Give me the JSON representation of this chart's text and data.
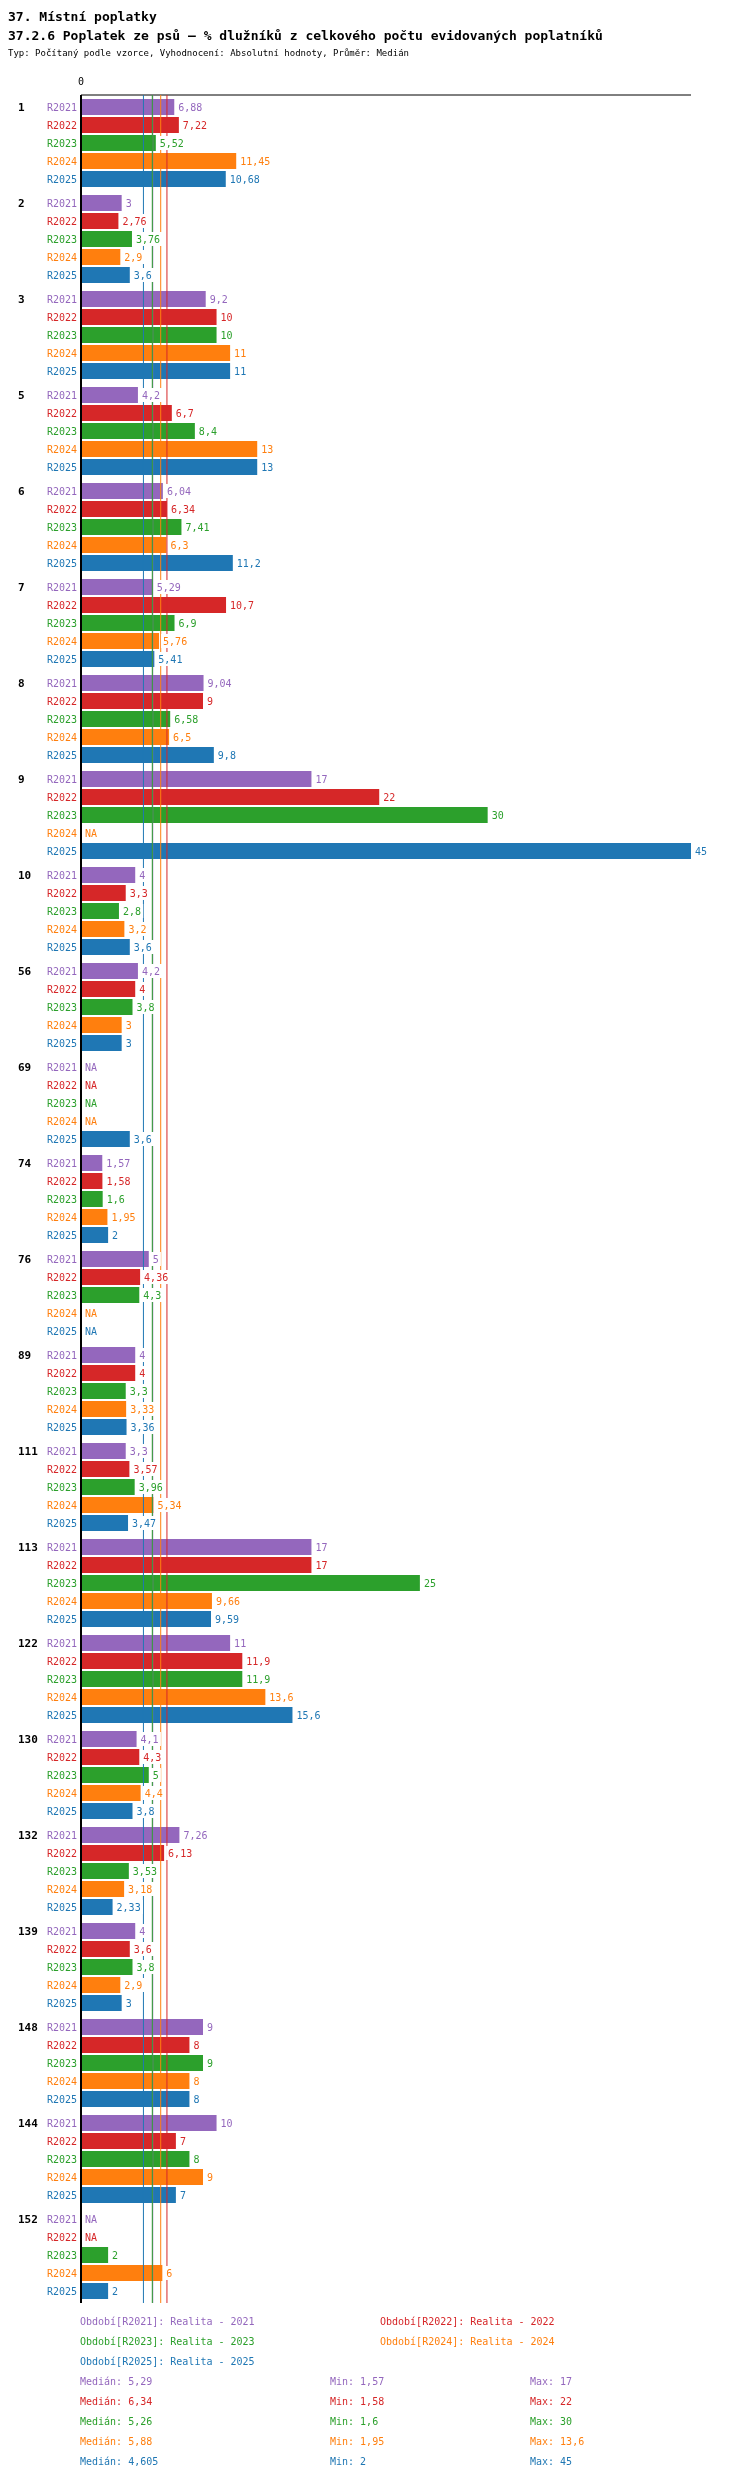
{
  "chart_data": {
    "type": "bar",
    "orientation": "horizontal",
    "title": "37. Místní poplatky",
    "subtitle": "37.2.6 Poplatek ze psů – % dlužníků z celkového počtu evidovaných poplatníků",
    "categories": [
      "1",
      "2",
      "3",
      "5",
      "6",
      "7",
      "8",
      "9",
      "10",
      "56",
      "69",
      "74",
      "76",
      "89",
      "111",
      "113",
      "122",
      "130",
      "132",
      "139",
      "148",
      "144",
      "152"
    ],
    "xlim": [
      0,
      45
    ],
    "series": [
      {
        "name": "R2021",
        "color": "#9467bd",
        "values": [
          6.88,
          3,
          9.2,
          4.2,
          6.04,
          5.29,
          9.04,
          17,
          4,
          4.2,
          null,
          1.57,
          5,
          4,
          3.3,
          17,
          11,
          4.1,
          7.26,
          4,
          9,
          10,
          null
        ],
        "value_labels": [
          "6,88",
          "3",
          "9,2",
          "4,2",
          "6,04",
          "5,29",
          "9,04",
          "17",
          "4",
          "4,2",
          "NA",
          "1,57",
          "5",
          "4",
          "3,3",
          "17",
          "11",
          "4,1",
          "7,26",
          "4",
          "9",
          "10",
          "NA"
        ]
      },
      {
        "name": "R2022",
        "color": "#d62728",
        "values": [
          7.22,
          2.76,
          10,
          6.7,
          6.34,
          10.7,
          9,
          22,
          3.3,
          4,
          null,
          1.58,
          4.36,
          4,
          3.57,
          17,
          11.9,
          4.3,
          6.13,
          3.6,
          8,
          7,
          null
        ],
        "value_labels": [
          "7,22",
          "2,76",
          "10",
          "6,7",
          "6,34",
          "10,7",
          "9",
          "22",
          "3,3",
          "4",
          "NA",
          "1,58",
          "4,36",
          "4",
          "3,57",
          "17",
          "11,9",
          "4,3",
          "6,13",
          "3,6",
          "8",
          "7",
          "NA"
        ]
      },
      {
        "name": "R2023",
        "color": "#2ca02c",
        "values": [
          5.52,
          3.76,
          10,
          8.4,
          7.41,
          6.9,
          6.58,
          30,
          2.8,
          3.8,
          null,
          1.6,
          4.3,
          3.3,
          3.96,
          25,
          11.9,
          5,
          3.53,
          3.8,
          9,
          8,
          2
        ],
        "value_labels": [
          "5,52",
          "3,76",
          "10",
          "8,4",
          "7,41",
          "6,9",
          "6,58",
          "30",
          "2,8",
          "3,8",
          "NA",
          "1,6",
          "4,3",
          "3,3",
          "3,96",
          "25",
          "11,9",
          "5",
          "3,53",
          "3,8",
          "9",
          "8",
          "2"
        ]
      },
      {
        "name": "R2024",
        "color": "#ff7f0e",
        "values": [
          11.45,
          2.9,
          11,
          13,
          6.3,
          5.76,
          6.5,
          null,
          3.2,
          3,
          null,
          1.95,
          null,
          3.33,
          5.34,
          9.66,
          13.6,
          4.4,
          3.18,
          2.9,
          8,
          9,
          6
        ],
        "value_labels": [
          "11,45",
          "2,9",
          "11",
          "13",
          "6,3",
          "5,76",
          "6,5",
          "NA",
          "3,2",
          "3",
          "NA",
          "1,95",
          "NA",
          "3,33",
          "5,34",
          "9,66",
          "13,6",
          "4,4",
          "3,18",
          "2,9",
          "8",
          "9",
          "6"
        ]
      },
      {
        "name": "R2025",
        "color": "#1f77b4",
        "values": [
          10.68,
          3.6,
          11,
          13,
          11.2,
          5.41,
          9.8,
          45,
          3.6,
          3,
          3.6,
          2,
          null,
          3.36,
          3.47,
          9.59,
          15.6,
          3.8,
          2.33,
          3,
          8,
          7,
          2
        ],
        "value_labels": [
          "10,68",
          "3,6",
          "11",
          "13",
          "11,2",
          "5,41",
          "9,8",
          "45",
          "3,6",
          "3",
          "3,6",
          "2",
          "NA",
          "3,36",
          "3,47",
          "9,59",
          "15,6",
          "3,8",
          "2,33",
          "3",
          "8",
          "7",
          "2"
        ]
      }
    ],
    "ref_lines": [
      {
        "axis": "x",
        "value": 5.29,
        "color": "#9467bd"
      },
      {
        "axis": "x",
        "value": 6.34,
        "color": "#d62728"
      },
      {
        "axis": "x",
        "value": 5.26,
        "color": "#2ca02c"
      },
      {
        "axis": "x",
        "value": 5.88,
        "color": "#ff7f0e"
      },
      {
        "axis": "x",
        "value": 4.605,
        "color": "#1f77b4"
      }
    ],
    "annotations": [
      "Typ: Počítaný podle vzorce, Vyhodnocení: Absolutní hodnoty, Průměr: Medián",
      "Období[R2021]: Realita - 2021",
      "Období[R2022]: Realita - 2022",
      "Období[R2023]: Realita - 2023",
      "Období[R2024]: Realita - 2024",
      "Období[R2025]: Realita - 2025",
      "Medián: 5,29",
      "Min: 1,57",
      "Max: 17",
      "Medián: 6,34",
      "Min: 1,58",
      "Max: 22",
      "Medián: 5,26",
      "Min: 1,6",
      "Max: 30",
      "Medián: 5,88",
      "Min: 1,95",
      "Max: 13,6",
      "Medián: 4,605",
      "Min: 2",
      "Max: 45",
      "0"
    ]
  }
}
